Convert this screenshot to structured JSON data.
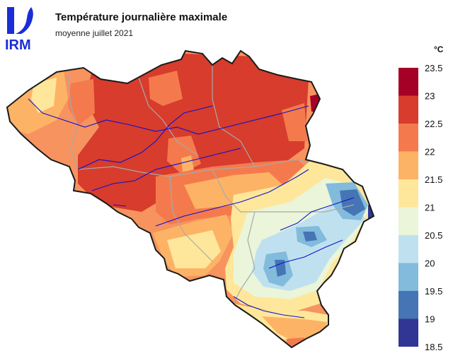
{
  "header": {
    "title": "Température journalière maximale",
    "subtitle": "moyenne juillet 2021"
  },
  "logo": {
    "text": "IRM",
    "color": "#1a2dd8"
  },
  "legend": {
    "unit": "°C",
    "ticks": [
      "23.5",
      "23",
      "22.5",
      "22",
      "21.5",
      "21",
      "20.5",
      "20",
      "19.5",
      "19",
      "18.5"
    ],
    "bins": [
      {
        "range": "23–23.5",
        "color": "#a50026"
      },
      {
        "range": "22.5–23",
        "color": "#d73c2c"
      },
      {
        "range": "22–22.5",
        "color": "#f47a4d"
      },
      {
        "range": "21.5–22",
        "color": "#fdb366"
      },
      {
        "range": "21–21.5",
        "color": "#fee79a"
      },
      {
        "range": "20.5–21",
        "color": "#eaf5d9"
      },
      {
        "range": "20–20.5",
        "color": "#bfe1ef"
      },
      {
        "range": "19.5–20",
        "color": "#82bbdc"
      },
      {
        "range": "19–19.5",
        "color": "#4575b4"
      },
      {
        "range": "18.5–19",
        "color": "#313695"
      }
    ]
  },
  "map": {
    "region": "Belgique",
    "boundary_color": "#1a1a1a",
    "province_color": "#a9a9a9",
    "river_color": "#1010d0"
  }
}
